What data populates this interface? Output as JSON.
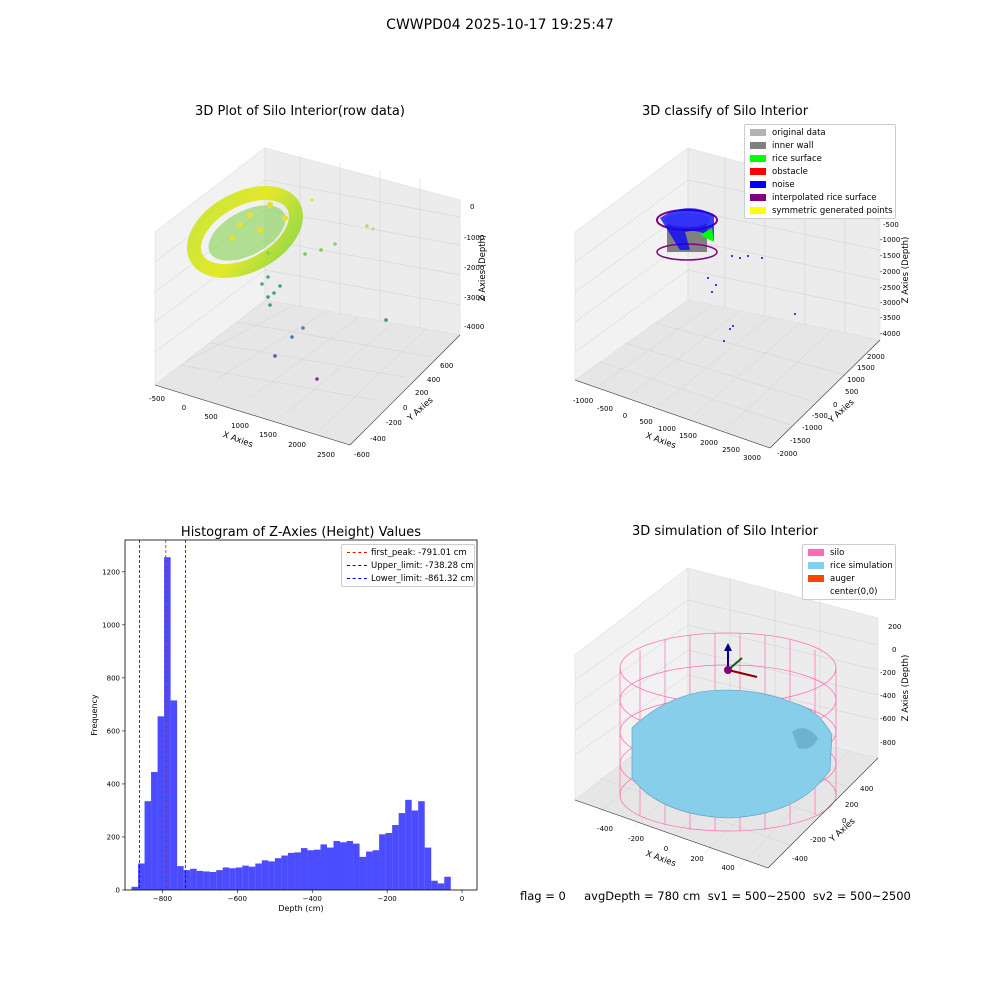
{
  "suptitle": "CWWPD04 2025-10-17 19:25:47",
  "panels": {
    "raw": {
      "title": "3D Plot of Silo Interior(row data)",
      "xlabel": "X Axies",
      "ylabel": "Y Axies",
      "zlabel": "Z Axies (Depth)",
      "xticks": [
        "-500",
        "0",
        "500",
        "1000",
        "1500",
        "2000",
        "2500"
      ],
      "yticks": [
        "-600",
        "-400",
        "-200",
        "0",
        "200",
        "400",
        "600"
      ],
      "zticks": [
        "0",
        "-1000",
        "-2000",
        "-3000",
        "-4000"
      ]
    },
    "classify": {
      "title": "3D classify of Silo Interior",
      "xlabel": "X Axies",
      "ylabel": "Y Axies",
      "zlabel": "Z Axies (Depth)",
      "xticks": [
        "-1000",
        "-500",
        "0",
        "500",
        "1000",
        "1500",
        "2000",
        "2500",
        "3000"
      ],
      "yticks": [
        "-2000",
        "-1500",
        "-1000",
        "-500",
        "0",
        "500",
        "1000",
        "1500",
        "2000"
      ],
      "zticks": [
        "0",
        "-500",
        "-1000",
        "-1500",
        "-2000",
        "-2500",
        "-3000",
        "-3500",
        "-4000"
      ],
      "legend": [
        {
          "label": "original data",
          "color": "#b3b3b3"
        },
        {
          "label": "inner wall",
          "color": "#808080"
        },
        {
          "label": "rice surface",
          "color": "#00ff00"
        },
        {
          "label": "obstacle",
          "color": "#ff0000"
        },
        {
          "label": "noise",
          "color": "#0000ff"
        },
        {
          "label": "interpolated rice surface",
          "color": "#800080"
        },
        {
          "label": "symmetric generated points",
          "color": "#ffff00"
        }
      ]
    },
    "simulation": {
      "title": "3D simulation of Silo Interior",
      "xlabel": "X Axies",
      "ylabel": "Y Axies",
      "zlabel": "Z Axies (Depth)",
      "xticks": [
        "-400",
        "-200",
        "0",
        "200",
        "400"
      ],
      "yticks": [
        "-400",
        "-200",
        "0",
        "200",
        "400"
      ],
      "zticks": [
        "200",
        "0",
        "-200",
        "-400",
        "-600",
        "-800"
      ],
      "legend": [
        {
          "label": "silo",
          "color": "#ff69b4"
        },
        {
          "label": "rice simulation",
          "color": "#87ceeb"
        },
        {
          "label": "auger",
          "color": "#ff4500"
        },
        {
          "label": "center(0,0)",
          "color": ""
        }
      ]
    }
  },
  "footer": "flag = 0     avgDepth = 780 cm  sv1 = 500~2500  sv2 = 500~2500",
  "chart_data": {
    "type": "bar",
    "title": "Histogram of Z-Axies (Height) Values",
    "xlabel": "Depth (cm)",
    "ylabel": "Frequency",
    "xlim": [
      -900,
      40
    ],
    "ylim": [
      0,
      1320
    ],
    "xticks": [
      -800,
      -600,
      -400,
      -200,
      0
    ],
    "yticks": [
      0,
      200,
      400,
      600,
      800,
      1000,
      1200
    ],
    "bar_color": "#0000ff",
    "bin_left": -882.6,
    "bin_width": 17.4,
    "values": [
      12,
      100,
      335,
      445,
      655,
      1255,
      715,
      90,
      75,
      80,
      72,
      70,
      68,
      75,
      85,
      82,
      85,
      92,
      88,
      100,
      112,
      108,
      120,
      130,
      140,
      142,
      158,
      150,
      152,
      172,
      160,
      185,
      180,
      185,
      175,
      125,
      145,
      150,
      210,
      215,
      245,
      290,
      340,
      300,
      335,
      160,
      35,
      25,
      50
    ],
    "vlines": [
      {
        "label": "first_peak: -791.01 cm",
        "x": -791.01,
        "color": "#ff0000"
      },
      {
        "label": "Upper_limit: -738.28 cm",
        "x": -738.28,
        "color": "#0000ff"
      },
      {
        "label": "Lower_limit: -861.32 cm",
        "x": -861.32,
        "color": "#0000ff"
      }
    ],
    "legend_position": "upper right"
  }
}
